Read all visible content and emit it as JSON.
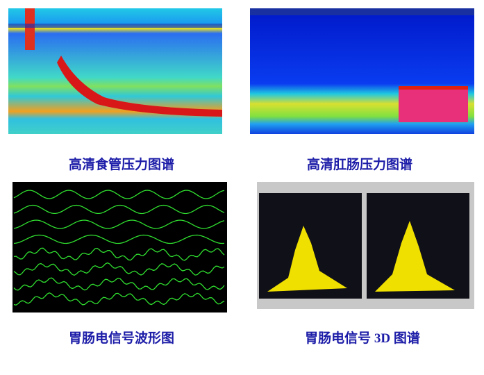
{
  "captions": [
    "高清食管压力图谱",
    "高清肛肠压力图谱",
    "胃肠电信号波形图",
    "胃肠电信号 3D 图谱"
  ]
}
